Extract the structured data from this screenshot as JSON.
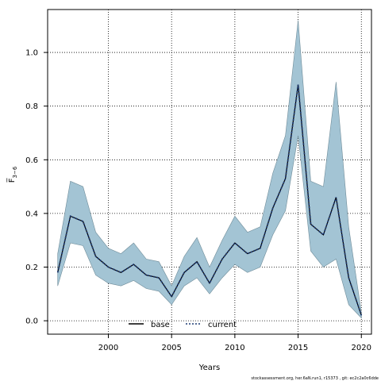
{
  "chart_data": {
    "type": "line",
    "xlabel": "Years",
    "ylabel": "F̅",
    "ylabel_subscript": "3−6",
    "xlim": [
      1995.2,
      2020.8
    ],
    "ylim": [
      -0.05,
      1.16
    ],
    "xticks": [
      2000,
      2005,
      2010,
      2015,
      2020
    ],
    "yticks": [
      0.0,
      0.2,
      0.4,
      0.6,
      0.8,
      1.0
    ],
    "ytick_labels": [
      "0.0",
      "0.2",
      "0.4",
      "0.6",
      "0.8",
      "1.0"
    ],
    "grid": true,
    "legend_position": "bottom-center",
    "legend": [
      {
        "name": "base",
        "style": "solid",
        "color": "#000000"
      },
      {
        "name": "current",
        "style": "dotted",
        "color": "#1f3b73"
      }
    ],
    "band_color": "#a3c4d4",
    "x": [
      1996,
      1997,
      1998,
      1999,
      2000,
      2001,
      2002,
      2003,
      2004,
      2005,
      2006,
      2007,
      2008,
      2009,
      2010,
      2011,
      2012,
      2013,
      2014,
      2015,
      2016,
      2017,
      2018,
      2019,
      2020
    ],
    "series": [
      {
        "name": "current",
        "values": [
          0.18,
          0.39,
          0.37,
          0.24,
          0.2,
          0.18,
          0.21,
          0.17,
          0.16,
          0.09,
          0.18,
          0.22,
          0.14,
          0.23,
          0.29,
          0.25,
          0.27,
          0.42,
          0.53,
          0.88,
          0.36,
          0.32,
          0.46,
          0.16,
          0.02
        ]
      },
      {
        "name": "base",
        "values": [
          0.18,
          0.39,
          0.37,
          0.24,
          0.2,
          0.18,
          0.21,
          0.17,
          0.16,
          0.09,
          0.18,
          0.22,
          0.14,
          0.23,
          0.29,
          0.25,
          0.27,
          0.42,
          0.53,
          0.88,
          0.36,
          0.32,
          0.46,
          0.16,
          0.02
        ]
      }
    ],
    "band_upper": [
      0.25,
      0.52,
      0.5,
      0.33,
      0.27,
      0.25,
      0.29,
      0.23,
      0.22,
      0.13,
      0.24,
      0.31,
      0.2,
      0.3,
      0.39,
      0.33,
      0.35,
      0.55,
      0.69,
      1.12,
      0.52,
      0.5,
      0.89,
      0.35,
      0.03
    ],
    "band_lower": [
      0.13,
      0.29,
      0.28,
      0.17,
      0.14,
      0.13,
      0.15,
      0.12,
      0.11,
      0.06,
      0.13,
      0.16,
      0.1,
      0.16,
      0.21,
      0.18,
      0.2,
      0.32,
      0.41,
      0.69,
      0.26,
      0.2,
      0.23,
      0.06,
      0.01
    ]
  },
  "footer": "stockassessment.org, her.6aN.run1, r15373 , git: ec2c2a0c6dde"
}
